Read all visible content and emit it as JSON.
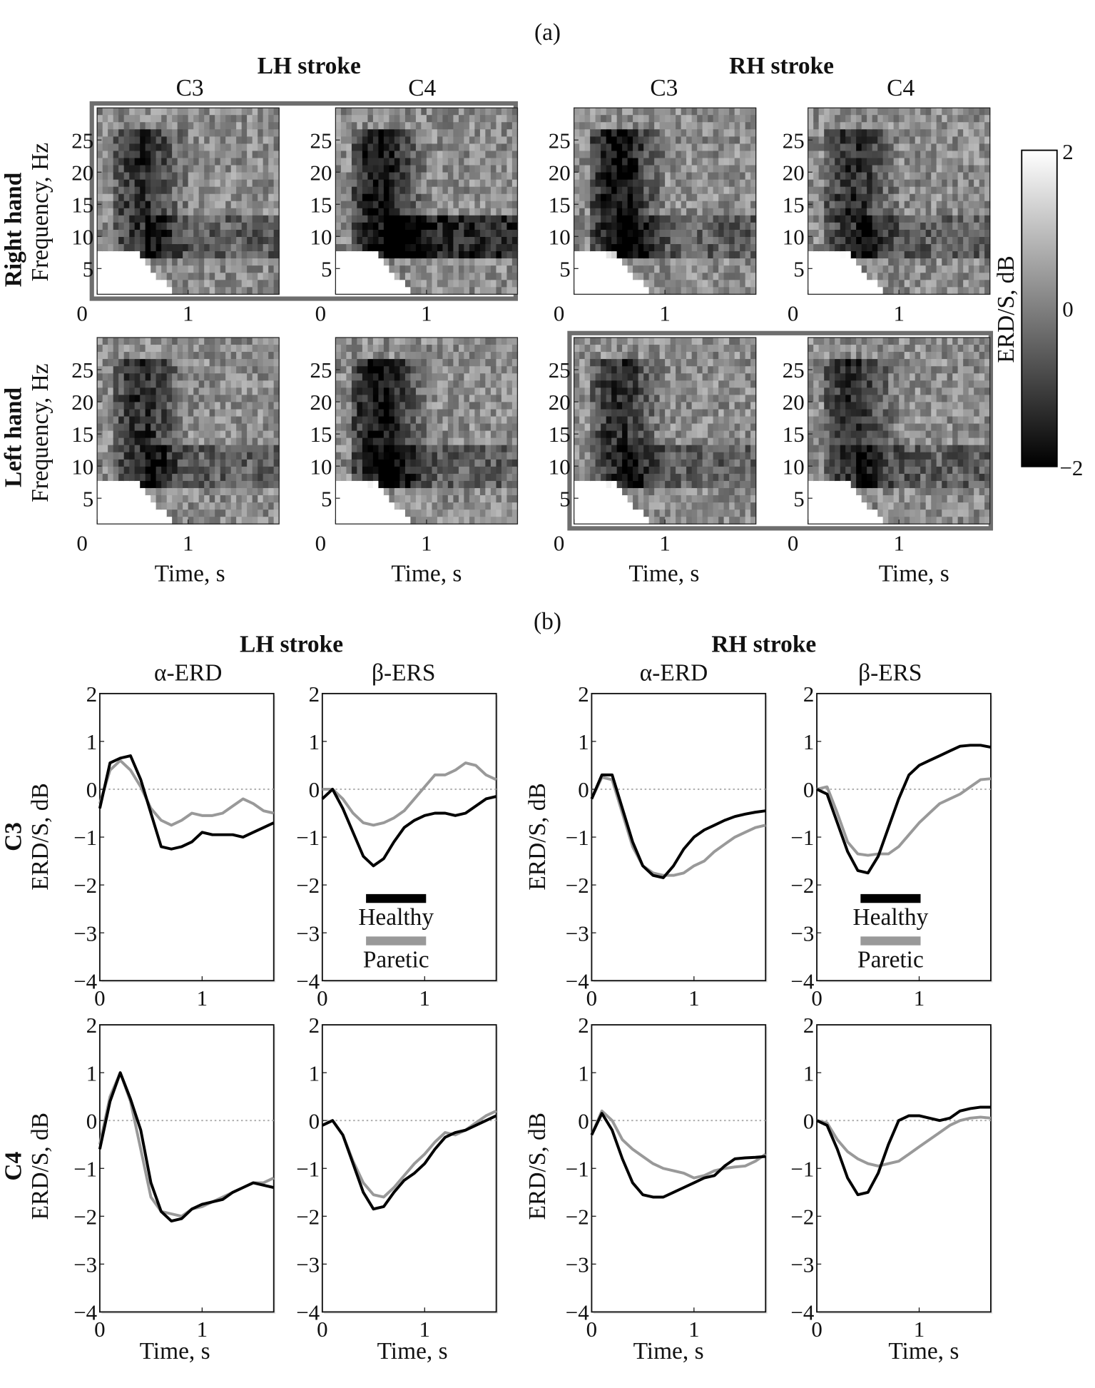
{
  "figure": {
    "label_a": "(a)",
    "label_b": "(b)"
  },
  "panel_a": {
    "groups": [
      {
        "title": "LH stroke",
        "channels": [
          "C3",
          "C4"
        ]
      },
      {
        "title": "RH stroke",
        "channels": [
          "C3",
          "C4"
        ]
      }
    ],
    "rows": [
      {
        "label": "Right hand",
        "ylabel": "Frequency, Hz"
      },
      {
        "label": "Left hand",
        "ylabel": "Frequency, Hz"
      }
    ],
    "xlabel": "Time, s",
    "highlighted": [
      "LH stroke / Right hand",
      "RH stroke / Left hand"
    ],
    "colorbar": {
      "label": "ERD/S, dB",
      "ticks": [
        "2",
        "0",
        "−2"
      ],
      "range": [
        -2,
        2
      ],
      "colors": [
        "#000000",
        "#ffffff"
      ]
    }
  },
  "panel_b": {
    "groups": [
      {
        "title": "LH stroke",
        "bands": [
          "α-ERD",
          "β-ERS"
        ]
      },
      {
        "title": "RH stroke",
        "bands": [
          "α-ERD",
          "β-ERS"
        ]
      }
    ],
    "rows": [
      {
        "label": "C3",
        "ylabel": "ERD/S, dB"
      },
      {
        "label": "C4",
        "ylabel": "ERD/S, dB"
      }
    ],
    "xlabel": "Time, s",
    "legend": [
      {
        "name": "Healthy",
        "color": "#000000"
      },
      {
        "name": "Paretic",
        "color": "#999999"
      }
    ]
  },
  "chart_data": [
    {
      "type": "heatmap",
      "xlabel": "Time, s",
      "ylabel": "Frequency, Hz",
      "xlim": [
        0,
        2
      ],
      "ylim": [
        1,
        30
      ],
      "xticks": [
        "0",
        "1"
      ],
      "yticks": [
        "5",
        "10",
        "15",
        "20",
        "25"
      ],
      "zlim": [
        -2,
        2
      ],
      "colormap": "gray",
      "panels": [
        {
          "group": "LH stroke",
          "channel": "C3",
          "row": "Right hand"
        },
        {
          "group": "LH stroke",
          "channel": "C4",
          "row": "Right hand"
        },
        {
          "group": "RH stroke",
          "channel": "C3",
          "row": "Right hand"
        },
        {
          "group": "RH stroke",
          "channel": "C4",
          "row": "Right hand"
        },
        {
          "group": "LH stroke",
          "channel": "C3",
          "row": "Left hand"
        },
        {
          "group": "LH stroke",
          "channel": "C4",
          "row": "Left hand"
        },
        {
          "group": "RH stroke",
          "channel": "C3",
          "row": "Left hand"
        },
        {
          "group": "RH stroke",
          "channel": "C4",
          "row": "Left hand"
        }
      ]
    },
    {
      "type": "line",
      "xlabel": "Time, s",
      "ylabel": "ERD/S, dB",
      "xlim": [
        0,
        1.7
      ],
      "ylim": [
        -4,
        2
      ],
      "xticks": [
        "0",
        "1"
      ],
      "yticks": [
        "2",
        "1",
        "0",
        "−1",
        "−2",
        "−3",
        "−4"
      ],
      "reference_line": 0,
      "x": [
        0,
        0.1,
        0.2,
        0.3,
        0.4,
        0.5,
        0.6,
        0.7,
        0.8,
        0.9,
        1.0,
        1.1,
        1.2,
        1.3,
        1.4,
        1.5,
        1.6,
        1.7
      ],
      "panels": [
        {
          "group": "LH stroke",
          "band": "α-ERD",
          "channel": "C3",
          "series": [
            {
              "name": "Healthy",
              "values": [
                -0.4,
                0.55,
                0.65,
                0.7,
                0.2,
                -0.5,
                -1.2,
                -1.25,
                -1.2,
                -1.1,
                -0.9,
                -0.95,
                -0.95,
                -0.95,
                -1.0,
                -0.9,
                -0.8,
                -0.7
              ]
            },
            {
              "name": "Paretic",
              "values": [
                -0.3,
                0.4,
                0.6,
                0.4,
                0.05,
                -0.4,
                -0.65,
                -0.75,
                -0.65,
                -0.5,
                -0.55,
                -0.55,
                -0.5,
                -0.35,
                -0.2,
                -0.3,
                -0.45,
                -0.5
              ]
            }
          ]
        },
        {
          "group": "LH stroke",
          "band": "β-ERS",
          "channel": "C3",
          "legend": true,
          "series": [
            {
              "name": "Healthy",
              "values": [
                -0.2,
                0,
                -0.4,
                -0.9,
                -1.4,
                -1.6,
                -1.45,
                -1.1,
                -0.8,
                -0.65,
                -0.55,
                -0.5,
                -0.5,
                -0.55,
                -0.5,
                -0.35,
                -0.2,
                -0.15
              ]
            },
            {
              "name": "Paretic",
              "values": [
                0,
                0,
                -0.2,
                -0.5,
                -0.7,
                -0.75,
                -0.7,
                -0.6,
                -0.45,
                -0.2,
                0.05,
                0.3,
                0.3,
                0.4,
                0.55,
                0.5,
                0.3,
                0.2
              ]
            }
          ]
        },
        {
          "group": "RH stroke",
          "band": "α-ERD",
          "channel": "C3",
          "series": [
            {
              "name": "Healthy",
              "values": [
                -0.2,
                0.3,
                0.3,
                -0.4,
                -1.1,
                -1.6,
                -1.8,
                -1.85,
                -1.6,
                -1.25,
                -1.0,
                -0.85,
                -0.75,
                -0.65,
                -0.57,
                -0.52,
                -0.48,
                -0.45
              ]
            },
            {
              "name": "Paretic",
              "values": [
                -0.2,
                0.25,
                0.2,
                -0.5,
                -1.2,
                -1.6,
                -1.75,
                -1.8,
                -1.8,
                -1.75,
                -1.6,
                -1.5,
                -1.3,
                -1.15,
                -1.0,
                -0.9,
                -0.8,
                -0.75
              ]
            }
          ]
        },
        {
          "group": "RH stroke",
          "band": "β-ERS",
          "channel": "C3",
          "legend": true,
          "series": [
            {
              "name": "Healthy",
              "values": [
                0,
                -0.1,
                -0.7,
                -1.3,
                -1.7,
                -1.75,
                -1.4,
                -0.8,
                -0.2,
                0.3,
                0.5,
                0.6,
                0.7,
                0.8,
                0.9,
                0.92,
                0.92,
                0.88
              ]
            },
            {
              "name": "Paretic",
              "values": [
                0,
                0.05,
                -0.5,
                -1.1,
                -1.35,
                -1.38,
                -1.35,
                -1.35,
                -1.2,
                -0.95,
                -0.7,
                -0.5,
                -0.3,
                -0.2,
                -0.1,
                0.05,
                0.2,
                0.22
              ]
            }
          ]
        },
        {
          "group": "LH stroke",
          "band": "α-ERD",
          "channel": "C4",
          "series": [
            {
              "name": "Healthy",
              "values": [
                -0.6,
                0.4,
                1.0,
                0.45,
                -0.2,
                -1.3,
                -1.9,
                -2.1,
                -2.05,
                -1.85,
                -1.75,
                -1.7,
                -1.65,
                -1.5,
                -1.4,
                -1.3,
                -1.35,
                -1.4
              ]
            },
            {
              "name": "Paretic",
              "values": [
                -0.5,
                0.5,
                1.0,
                0.4,
                -0.6,
                -1.6,
                -1.9,
                -1.95,
                -2.0,
                -1.85,
                -1.8,
                -1.7,
                -1.6,
                -1.5,
                -1.4,
                -1.3,
                -1.3,
                -1.2
              ]
            }
          ]
        },
        {
          "group": "LH stroke",
          "band": "β-ERS",
          "channel": "C4",
          "series": [
            {
              "name": "Healthy",
              "values": [
                -0.1,
                0,
                -0.3,
                -0.9,
                -1.5,
                -1.85,
                -1.8,
                -1.5,
                -1.25,
                -1.1,
                -0.9,
                -0.6,
                -0.35,
                -0.25,
                -0.2,
                -0.1,
                0,
                0.1
              ]
            },
            {
              "name": "Paretic",
              "values": [
                -0.1,
                0,
                -0.3,
                -0.85,
                -1.3,
                -1.55,
                -1.6,
                -1.4,
                -1.15,
                -0.9,
                -0.7,
                -0.45,
                -0.25,
                -0.3,
                -0.2,
                -0.05,
                0.1,
                0.2
              ]
            }
          ]
        },
        {
          "group": "RH stroke",
          "band": "α-ERD",
          "channel": "C4",
          "series": [
            {
              "name": "Healthy",
              "values": [
                -0.3,
                0.15,
                -0.2,
                -0.8,
                -1.3,
                -1.55,
                -1.6,
                -1.6,
                -1.5,
                -1.4,
                -1.3,
                -1.2,
                -1.15,
                -0.95,
                -0.8,
                -0.78,
                -0.77,
                -0.75
              ]
            },
            {
              "name": "Paretic",
              "values": [
                -0.3,
                0.2,
                0.0,
                -0.4,
                -0.6,
                -0.75,
                -0.9,
                -1.0,
                -1.05,
                -1.1,
                -1.2,
                -1.15,
                -1.05,
                -1.0,
                -0.97,
                -0.95,
                -0.85,
                -0.7
              ]
            }
          ]
        },
        {
          "group": "RH stroke",
          "band": "β-ERS",
          "channel": "C4",
          "series": [
            {
              "name": "Healthy",
              "values": [
                0,
                -0.1,
                -0.6,
                -1.2,
                -1.55,
                -1.5,
                -1.1,
                -0.5,
                0,
                0.1,
                0.1,
                0.05,
                0,
                0.05,
                0.2,
                0.25,
                0.28,
                0.28
              ]
            },
            {
              "name": "Paretic",
              "values": [
                0,
                -0.05,
                -0.4,
                -0.65,
                -0.8,
                -0.9,
                -0.95,
                -0.9,
                -0.85,
                -0.7,
                -0.55,
                -0.4,
                -0.25,
                -0.1,
                0,
                0.05,
                0.07,
                0.05
              ]
            }
          ]
        }
      ]
    }
  ]
}
